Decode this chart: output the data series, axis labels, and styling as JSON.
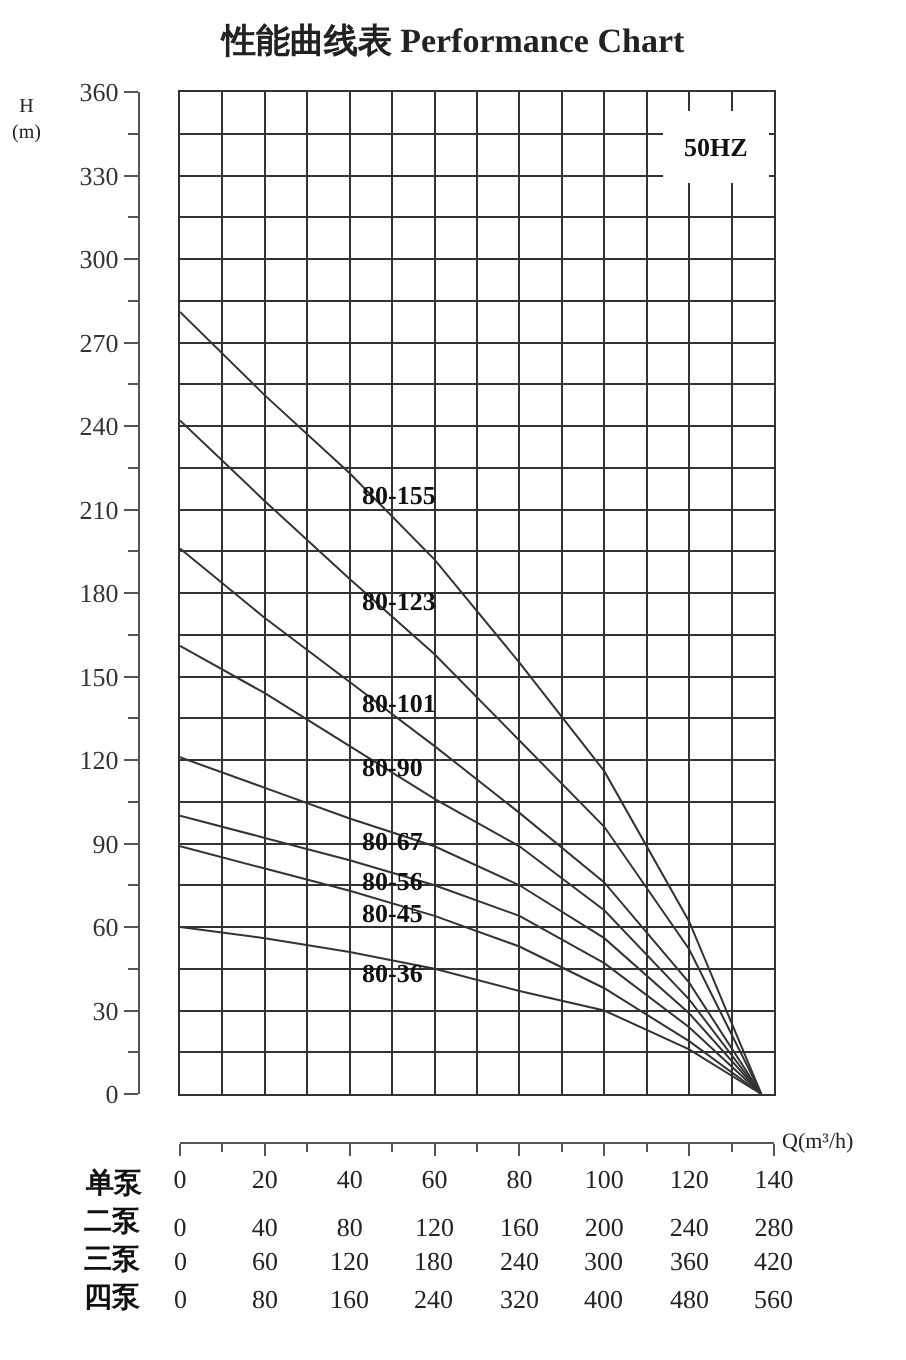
{
  "chart_data": {
    "type": "line",
    "title": "性能曲线表 Performance Chart",
    "xlabel": "Q(m³/h)",
    "ylabel": "H\n(m)",
    "x": [
      0,
      20,
      40,
      60,
      80,
      100,
      120,
      137
    ],
    "series": [
      {
        "name": "80-155",
        "color": "#333333",
        "values": [
          281,
          251,
          223,
          192,
          155,
          116,
          62,
          0
        ]
      },
      {
        "name": "80-123",
        "color": "#333333",
        "values": [
          242,
          213,
          185,
          158,
          127,
          96,
          52,
          0
        ]
      },
      {
        "name": "80-101",
        "color": "#333333",
        "values": [
          196,
          171,
          148,
          125,
          101,
          76,
          40,
          0
        ]
      },
      {
        "name": "80-90",
        "color": "#333333",
        "values": [
          161,
          144,
          125,
          106,
          89,
          66,
          34,
          0
        ]
      },
      {
        "name": "80-67",
        "color": "#333333",
        "values": [
          121,
          110,
          99,
          89,
          75,
          56,
          29,
          0
        ]
      },
      {
        "name": "80-56",
        "color": "#333333",
        "values": [
          100,
          92,
          84,
          75,
          64,
          47,
          24,
          0
        ]
      },
      {
        "name": "80-45",
        "color": "#333333",
        "values": [
          89,
          81,
          73,
          64,
          53,
          38,
          19,
          0
        ]
      },
      {
        "name": "80-36",
        "color": "#333333",
        "values": [
          60,
          56,
          51,
          45,
          37,
          30,
          16,
          0
        ]
      }
    ],
    "xlim": [
      0,
      140
    ],
    "xticks": [
      0,
      20,
      40,
      60,
      80,
      100,
      120,
      140
    ],
    "x2lim": [
      0,
      280
    ],
    "x2ticks": [
      0,
      40,
      80,
      120,
      160,
      200,
      240,
      280
    ],
    "ylim": [
      0,
      360
    ],
    "yticks": [
      0,
      30,
      60,
      90,
      120,
      150,
      180,
      210,
      240,
      270,
      300,
      330,
      360
    ],
    "annotations": [
      "50HZ",
      "单泵",
      "二泵",
      "三泵",
      "四泵",
      "0",
      "60",
      "120",
      "180",
      "240",
      "300",
      "360",
      "420",
      "0",
      "80",
      "160",
      "240",
      "320",
      "400",
      "480",
      "560"
    ],
    "grid": true,
    "legend": false,
    "marker": "none",
    "line_style": "solid"
  }
}
